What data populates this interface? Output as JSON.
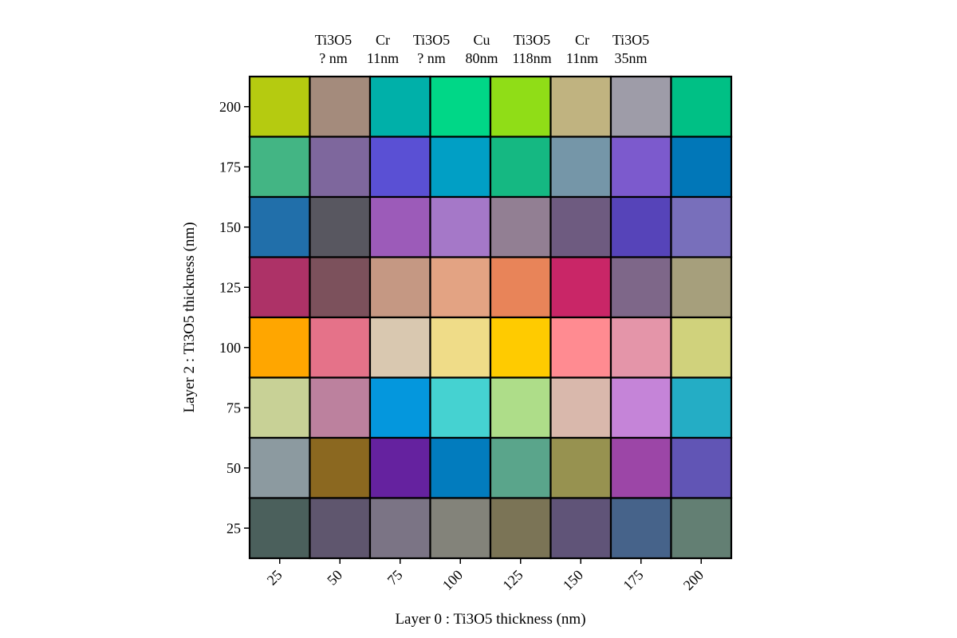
{
  "chart_data": {
    "type": "heatmap",
    "title_lines": [
      [
        "Ti3O5",
        "Cr",
        "Ti3O5",
        "Cu",
        "Ti3O5",
        "Cr",
        "Ti3O5"
      ],
      [
        "? nm",
        "11nm",
        "? nm",
        "80nm",
        "118nm",
        "11nm",
        "35nm"
      ]
    ],
    "xlabel": "Layer 0 : Ti3O5 thickness (nm)",
    "ylabel": "Layer 2 : Ti3O5 thickness (nm)",
    "x": [
      25,
      50,
      75,
      100,
      125,
      150,
      175,
      200
    ],
    "y": [
      25,
      50,
      75,
      100,
      125,
      150,
      175,
      200
    ],
    "x_tick_labels": [
      "25",
      "50",
      "75",
      "100",
      "125",
      "150",
      "175",
      "200"
    ],
    "y_tick_labels": [
      "25",
      "50",
      "75",
      "100",
      "125",
      "150",
      "175",
      "200"
    ],
    "colors_top_to_bottom": [
      [
        "#b5cb10",
        "#a48b7c",
        "#00b0a9",
        "#00d787",
        "#90dd17",
        "#c0b380",
        "#9e9ca8",
        "#00c085"
      ],
      [
        "#43b584",
        "#7e679d",
        "#5a50d4",
        "#019fc5",
        "#15b882",
        "#7596a8",
        "#7c5acd",
        "#0177b8"
      ],
      [
        "#216faa",
        "#585760",
        "#9c5bb9",
        "#a578c8",
        "#927f93",
        "#6e5b80",
        "#5644b9",
        "#786fbb"
      ],
      [
        "#ad3267",
        "#7c515c",
        "#c59883",
        "#e3a383",
        "#e88459",
        "#c92667",
        "#7e6789",
        "#a69f7c"
      ],
      [
        "#ffa600",
        "#e57289",
        "#d9c8b0",
        "#efdc88",
        "#ffcb00",
        "#ff8b91",
        "#e495a9",
        "#d0d27c"
      ],
      [
        "#c8d196",
        "#bc819e",
        "#0497dd",
        "#45d2d1",
        "#aedd89",
        "#d9b8ac",
        "#c584d8",
        "#24adc5"
      ],
      [
        "#8c9aa0",
        "#8b6820",
        "#65229f",
        "#027cbe",
        "#5aa58b",
        "#979250",
        "#9c46a7",
        "#6155b5"
      ],
      [
        "#4b605c",
        "#5f566e",
        "#7b7485",
        "#83837a",
        "#7b7456",
        "#605478",
        "#46638a",
        "#637f73"
      ]
    ],
    "grid": false
  }
}
